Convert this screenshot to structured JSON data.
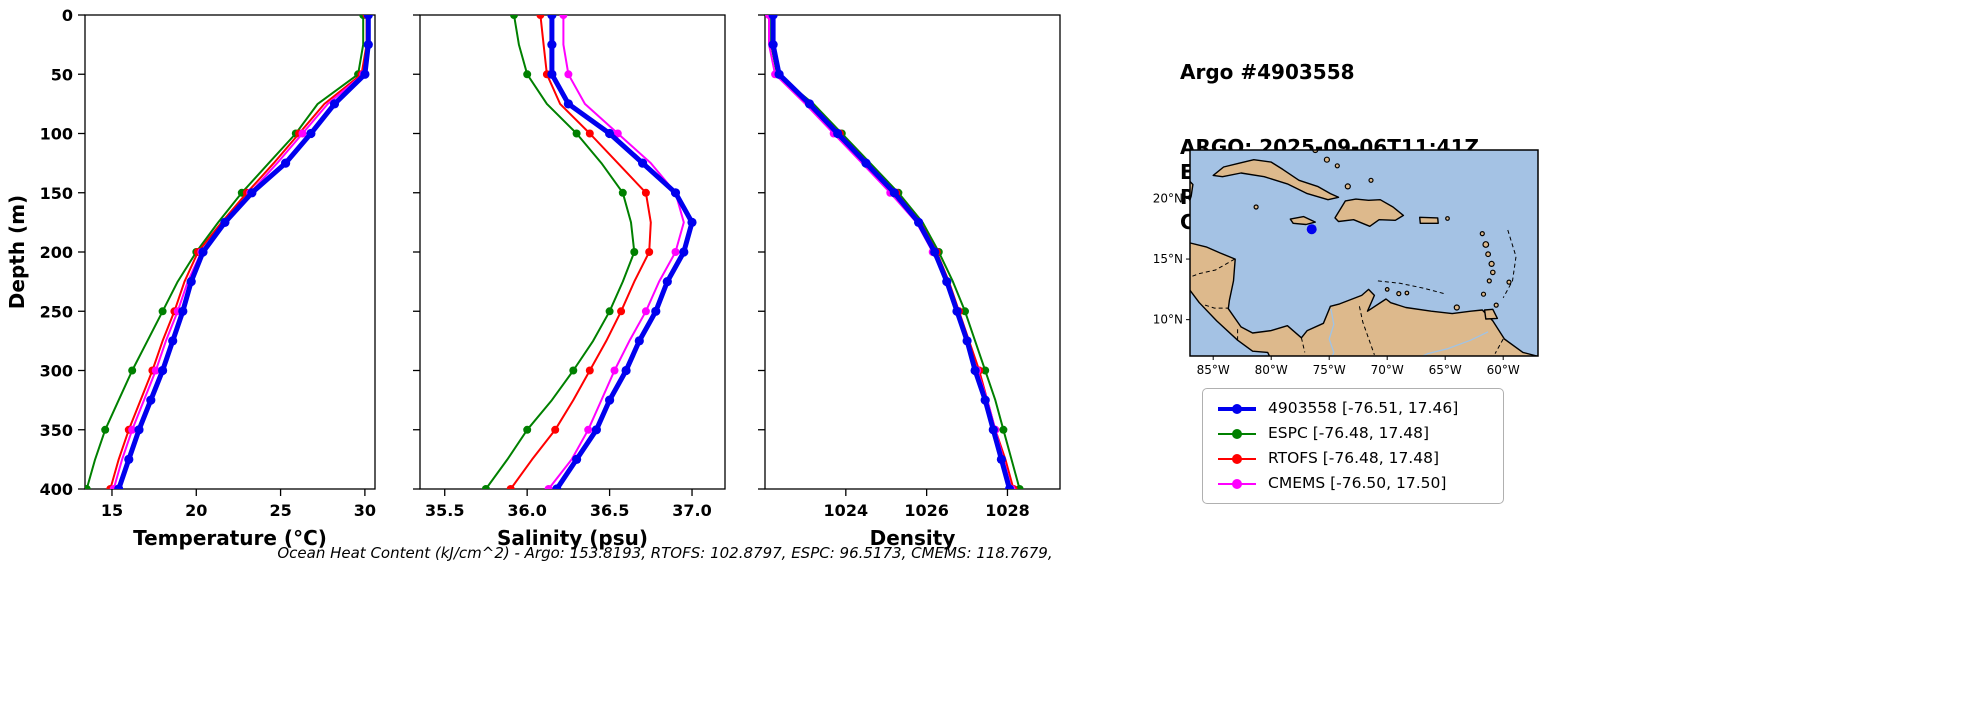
{
  "header": {
    "title": "Argo #4903558",
    "lines": [
      "ARGO: 2025-09-06T11:41Z",
      "ESPC : 2025-09-06T12:00Z",
      "RTOFS: 2025-09-06T12:00Z",
      "CMEMS: 2025-09-06T12:00Z"
    ]
  },
  "footer": {
    "ohc_caption": "Ocean Heat Content (kJ/cm^2) - Argo: 153.8193,  RTOFS: 102.8797,  ESPC: 96.5173,  CMEMS: 118.7679,"
  },
  "legend": {
    "entries": [
      {
        "label": "4903558 [-76.51, 17.46]",
        "color": "#0000ee"
      },
      {
        "label": "ESPC [-76.48, 17.48]",
        "color": "#008000"
      },
      {
        "label": "RTOFS [-76.48, 17.48]",
        "color": "#ff0000"
      },
      {
        "label": "CMEMS [-76.50, 17.50]",
        "color": "#ff00ff"
      }
    ]
  },
  "map": {
    "ocean_color": "#a4c2e4",
    "land_color": "#ddb98c",
    "lon_range": [
      -87,
      -57
    ],
    "lat_range": [
      7,
      24
    ],
    "lat_ticks": [
      {
        "label": "20°N",
        "value": 20
      },
      {
        "label": "15°N",
        "value": 15
      },
      {
        "label": "10°N",
        "value": 10
      }
    ],
    "lon_ticks": [
      {
        "label": "85°W",
        "value": -85
      },
      {
        "label": "80°W",
        "value": -80
      },
      {
        "label": "75°W",
        "value": -75
      },
      {
        "label": "70°W",
        "value": -70
      },
      {
        "label": "65°W",
        "value": -65
      },
      {
        "label": "60°W",
        "value": -60
      }
    ],
    "float_marker": {
      "lon": -76.51,
      "lat": 17.46,
      "color": "#0000ee"
    }
  },
  "chart_data": [
    {
      "type": "line",
      "xlabel": "Temperature (°C)",
      "ylabel": "Depth (m)",
      "xlim": [
        13.4,
        30.6
      ],
      "ylim": [
        400,
        0
      ],
      "xticks": [
        15,
        20,
        25,
        30
      ],
      "xtick_labels": [
        "15",
        "20",
        "25",
        "30"
      ],
      "yticks": [
        0,
        50,
        100,
        150,
        200,
        250,
        300,
        350,
        400
      ],
      "depths": [
        0,
        25,
        50,
        75,
        100,
        125,
        150,
        175,
        200,
        225,
        250,
        275,
        300,
        325,
        350,
        375,
        400
      ],
      "series": [
        {
          "name": "4903558",
          "color": "#0000ee",
          "values": [
            30.2,
            30.2,
            30.0,
            28.2,
            26.8,
            25.3,
            23.3,
            21.7,
            20.4,
            19.7,
            19.2,
            18.6,
            18.0,
            17.3,
            16.6,
            16.0,
            15.4
          ]
        },
        {
          "name": "ESPC",
          "color": "#008000",
          "values": [
            29.9,
            29.9,
            29.6,
            27.2,
            25.9,
            24.3,
            22.7,
            21.3,
            20.0,
            18.9,
            18.0,
            17.1,
            16.2,
            15.4,
            14.6,
            14.0,
            13.5
          ]
        },
        {
          "name": "RTOFS",
          "color": "#ff0000",
          "values": [
            30.1,
            30.1,
            29.8,
            27.6,
            26.1,
            24.6,
            23.0,
            21.5,
            20.1,
            19.3,
            18.7,
            18.0,
            17.4,
            16.7,
            16.0,
            15.4,
            14.9
          ]
        },
        {
          "name": "CMEMS",
          "color": "#ff00ff",
          "values": [
            30.2,
            30.2,
            29.9,
            27.8,
            26.3,
            24.8,
            23.2,
            21.7,
            20.3,
            19.5,
            18.9,
            18.2,
            17.6,
            16.9,
            16.2,
            15.6,
            15.1
          ]
        }
      ]
    },
    {
      "type": "line",
      "xlabel": "Salinity (psu)",
      "ylabel": "",
      "xlim": [
        35.35,
        37.2
      ],
      "ylim": [
        400,
        0
      ],
      "xticks": [
        35.5,
        36.0,
        36.5,
        37.0
      ],
      "xtick_labels": [
        "35.5",
        "36.0",
        "36.5",
        "37.0"
      ],
      "yticks": [
        0,
        50,
        100,
        150,
        200,
        250,
        300,
        350,
        400
      ],
      "depths": [
        0,
        25,
        50,
        75,
        100,
        125,
        150,
        175,
        200,
        225,
        250,
        275,
        300,
        325,
        350,
        375,
        400
      ],
      "series": [
        {
          "name": "4903558",
          "color": "#0000ee",
          "values": [
            36.15,
            36.15,
            36.15,
            36.25,
            36.5,
            36.7,
            36.9,
            37.0,
            36.95,
            36.85,
            36.78,
            36.68,
            36.6,
            36.5,
            36.42,
            36.3,
            36.18
          ]
        },
        {
          "name": "ESPC",
          "color": "#008000",
          "values": [
            35.92,
            35.95,
            36.0,
            36.12,
            36.3,
            36.45,
            36.58,
            36.63,
            36.65,
            36.58,
            36.5,
            36.4,
            36.28,
            36.15,
            36.0,
            35.88,
            35.75
          ]
        },
        {
          "name": "RTOFS",
          "color": "#ff0000",
          "values": [
            36.08,
            36.1,
            36.12,
            36.2,
            36.38,
            36.55,
            36.72,
            36.75,
            36.74,
            36.65,
            36.57,
            36.48,
            36.38,
            36.28,
            36.17,
            36.03,
            35.9
          ]
        },
        {
          "name": "CMEMS",
          "color": "#ff00ff",
          "values": [
            36.22,
            36.22,
            36.25,
            36.35,
            36.55,
            36.75,
            36.9,
            36.95,
            36.9,
            36.8,
            36.72,
            36.62,
            36.53,
            36.45,
            36.37,
            36.27,
            36.13
          ]
        }
      ]
    },
    {
      "type": "line",
      "xlabel": "Density",
      "ylabel": "",
      "xlim": [
        1022.0,
        1029.3
      ],
      "ylim": [
        400,
        0
      ],
      "xticks": [
        1024,
        1026,
        1028
      ],
      "xtick_labels": [
        "1024",
        "1026",
        "1028"
      ],
      "yticks": [
        0,
        50,
        100,
        150,
        200,
        250,
        300,
        350,
        400
      ],
      "depths": [
        0,
        25,
        50,
        75,
        100,
        125,
        150,
        175,
        200,
        225,
        250,
        275,
        300,
        325,
        350,
        375,
        400
      ],
      "series": [
        {
          "name": "4903558",
          "color": "#0000ee",
          "values": [
            1022.2,
            1022.2,
            1022.35,
            1023.1,
            1023.8,
            1024.5,
            1025.2,
            1025.8,
            1026.2,
            1026.5,
            1026.75,
            1027.0,
            1027.2,
            1027.45,
            1027.65,
            1027.85,
            1028.05
          ]
        },
        {
          "name": "ESPC",
          "color": "#008000",
          "values": [
            1022.15,
            1022.15,
            1022.3,
            1023.2,
            1023.9,
            1024.6,
            1025.3,
            1025.9,
            1026.3,
            1026.65,
            1026.95,
            1027.2,
            1027.45,
            1027.7,
            1027.9,
            1028.1,
            1028.3
          ]
        },
        {
          "name": "RTOFS",
          "color": "#ff0000",
          "values": [
            1022.2,
            1022.2,
            1022.35,
            1023.15,
            1023.85,
            1024.55,
            1025.25,
            1025.85,
            1026.25,
            1026.55,
            1026.8,
            1027.05,
            1027.3,
            1027.5,
            1027.7,
            1027.95,
            1028.15
          ]
        },
        {
          "name": "CMEMS",
          "color": "#ff00ff",
          "values": [
            1022.1,
            1022.1,
            1022.25,
            1023.0,
            1023.7,
            1024.4,
            1025.1,
            1025.75,
            1026.15,
            1026.5,
            1026.75,
            1027.0,
            1027.25,
            1027.5,
            1027.7,
            1027.9,
            1028.1
          ]
        }
      ]
    }
  ]
}
